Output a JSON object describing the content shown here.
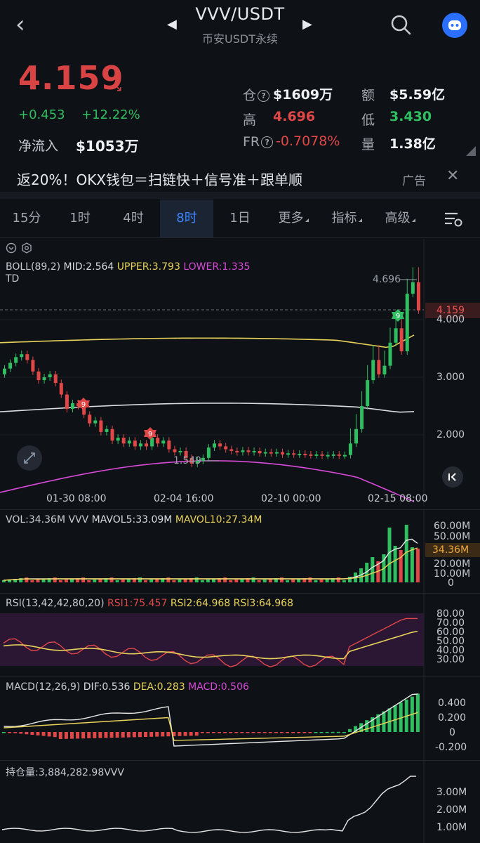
{
  "header": {
    "pair": "VVV/USDT",
    "subtitle": "币安USDT永续",
    "back_icon": "chevron-left-icon",
    "prev_icon": "triangle-left-icon",
    "next_icon": "triangle-right-icon",
    "search_icon": "search-icon",
    "avatar_icon": "robot-avatar-icon"
  },
  "ticker": {
    "price": "4.159",
    "price_color": "#d94343",
    "change_abs": "+0.453",
    "change_pct": "+12.22%",
    "net_inflow_label": "净流入",
    "net_inflow_value": "$1053万",
    "stats": {
      "oi_label": "仓",
      "oi_value": "$1609万",
      "amount_label": "额",
      "amount_value": "$5.59亿",
      "high_label": "高",
      "high_value": "4.696",
      "low_label": "低",
      "low_value": "3.430",
      "fr_label": "FR",
      "fr_value": "-0.7078%",
      "vol_label": "量",
      "vol_value": "1.38亿"
    }
  },
  "ad": {
    "text": "返20%！OKX钱包＝扫链快＋信号准＋跟单顺",
    "tag": "广告",
    "close": "✕"
  },
  "tabs": {
    "items": [
      "15分",
      "1时",
      "4时",
      "8时",
      "1日",
      "更多",
      "指标",
      "高级"
    ],
    "active_index": 3,
    "settings_icon": "chart-settings-icon"
  },
  "main_chart": {
    "boll_label": "BOLL(89,2)",
    "mid": "MID:2.564",
    "upper": "UPPER:3.793",
    "lower": "LOWER:1.335",
    "td": "TD",
    "high_marker": "4.696",
    "low_marker": "1.549",
    "last_price_tag": "4.159",
    "td_marks": [
      "9",
      "9",
      "9"
    ],
    "y_ticks": [
      "4.000",
      "3.000",
      "2.000"
    ],
    "x_ticks": [
      "01-30 08:00",
      "02-04 16:00",
      "02-10 00:00",
      "02-15 08:00"
    ],
    "colors": {
      "up": "#2fbf60",
      "down": "#e04848",
      "upper": "#e9d25a",
      "mid": "#d8dbe0",
      "lower": "#d84ad8"
    }
  },
  "vol_panel": {
    "label": "VOL:34.36M",
    "name": "VVV",
    "mavol5": "MAVOL5:33.09M",
    "mavol10": "MAVOL10:27.34M",
    "current_tag": "34.36M",
    "y_ticks": [
      "60.00M",
      "50.00M",
      "20.00M",
      "10.00M",
      "0"
    ]
  },
  "rsi_panel": {
    "label": "RSI(13,42,42,80,20)",
    "rsi1": "RSI1:75.457",
    "rsi2": "RSI2:64.968",
    "rsi3": "RSI3:64.968",
    "y_ticks": [
      "80.00",
      "70.00",
      "60.00",
      "50.00",
      "40.00",
      "30.00"
    ]
  },
  "macd_panel": {
    "label": "MACD(12,26,9)",
    "dif": "DIF:0.536",
    "dea": "DEA:0.283",
    "macd": "MACD:0.506",
    "y_ticks": [
      "0.400",
      "0.200",
      "0",
      "-0.200"
    ]
  },
  "oi_panel": {
    "label": "持仓量:3,884,282.98VVV",
    "y_ticks": [
      "3.00M",
      "2.00M",
      "1.00M"
    ]
  }
}
